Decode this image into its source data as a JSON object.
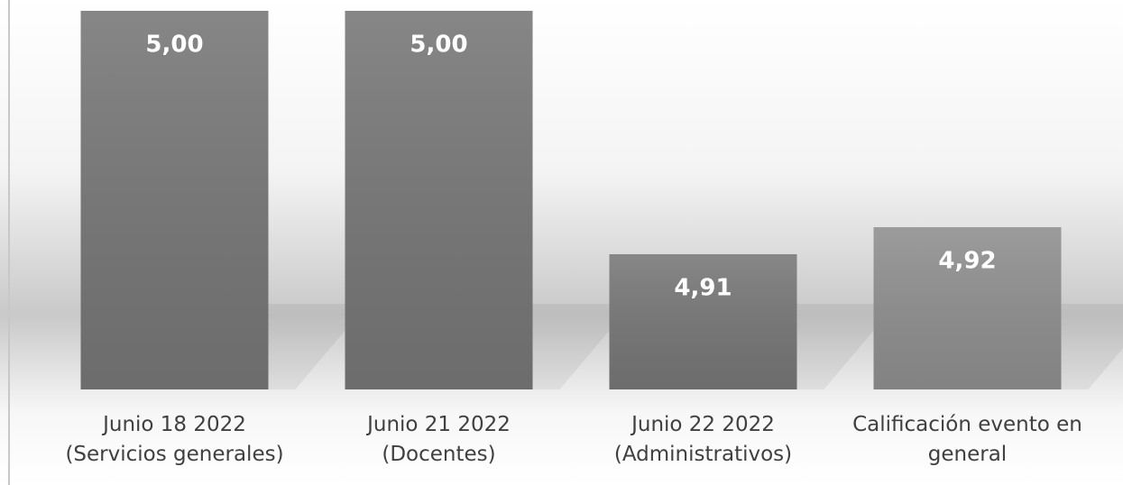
{
  "chart_data": {
    "type": "bar",
    "categories": [
      "Junio 18 2022\n(Servicios generales)",
      "Junio 21 2022\n(Docentes)",
      "Junio 22 2022\n(Administrativos)",
      "Calificación evento en\ngeneral"
    ],
    "values": [
      5.0,
      5.0,
      4.91,
      4.92
    ],
    "value_labels": [
      "5,00",
      "5,00",
      "4,91",
      "4,92"
    ],
    "colors": [
      "#767676",
      "#767676",
      "#767676",
      "#8e8e8e"
    ],
    "ylim": [
      4.86,
      5.0
    ]
  }
}
